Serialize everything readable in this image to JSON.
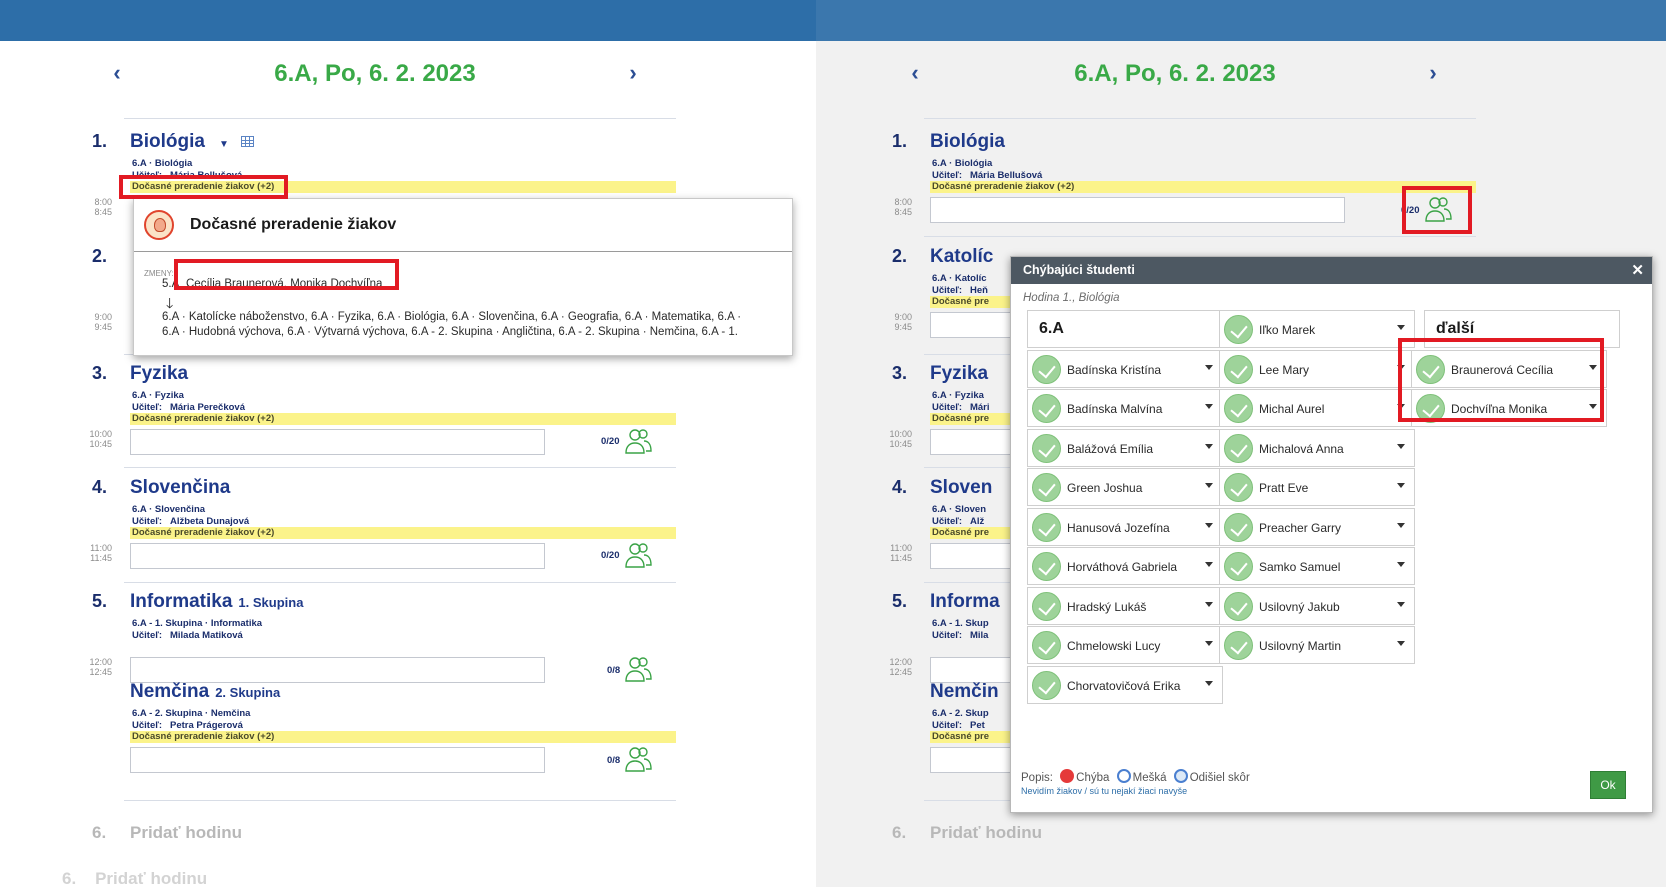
{
  "left_panel": {
    "header": {
      "title": "6.A, Po, 6. 2. 2023",
      "prev": "‹",
      "next": "›"
    },
    "lessons": [
      {
        "num": "1.",
        "name": "Biológia",
        "group": "",
        "class_subject": "6.A · Biológia",
        "teacher_label": "Učiteľ:",
        "teacher": "Mária Bellušová",
        "change": "Dočasné preradenie žiakov (+2)",
        "start": "8:00",
        "end": "8:45",
        "count": "0/20"
      },
      {
        "num": "2.",
        "name": "",
        "group": "",
        "class_subject": "",
        "teacher_label": "",
        "teacher": "",
        "change": "",
        "start": "9:00",
        "end": "9:45",
        "count": ""
      },
      {
        "num": "3.",
        "name": "Fyzika",
        "group": "",
        "class_subject": "6.A · Fyzika",
        "teacher_label": "Učiteľ:",
        "teacher": "Mária Perečková",
        "change": "Dočasné preradenie žiakov (+2)",
        "start": "10:00",
        "end": "10:45",
        "count": "0/20"
      },
      {
        "num": "4.",
        "name": "Slovenčina",
        "group": "",
        "class_subject": "6.A · Slovenčina",
        "teacher_label": "Učiteľ:",
        "teacher": "Alžbeta Dunajová",
        "change": "Dočasné preradenie žiakov (+2)",
        "start": "11:00",
        "end": "11:45",
        "count": "0/20"
      },
      {
        "num": "5.",
        "name": "Informatika",
        "group": "1. Skupina",
        "class_subject": "6.A - 1. Skupina · Informatika",
        "teacher_label": "Učiteľ:",
        "teacher": "Milada Matiková",
        "change": "",
        "start": "12:00",
        "end": "12:45",
        "count": "0/8"
      },
      {
        "num": "",
        "name": "Nemčina",
        "group": "2. Skupina",
        "class_subject": "6.A - 2. Skupina · Nemčina",
        "teacher_label": "Učiteľ:",
        "teacher": "Petra Prágerová",
        "change": "Dočasné preradenie žiakov (+2)",
        "start": "",
        "end": "",
        "count": "0/8"
      }
    ],
    "add_lesson": {
      "num": "6.",
      "label": "Pridať hodinu"
    },
    "faint_add": {
      "num": "6.",
      "label": "Pridať hodinu"
    },
    "popup": {
      "title": "Dočasné preradenie žiakov",
      "changes_label": "ZMENY:",
      "from_class": "5.A",
      "students": "Cecília Braunerová, Monika Dochvíľna",
      "arrow": "🡓",
      "targets_line1": "6.A · Katolícke náboženstvo, 6.A · Fyzika, 6.A · Biológia, 6.A · Slovenčina, 6.A · Geografia, 6.A · Matematika, 6.A ·",
      "targets_line2": "6.A · Hudobná výchova, 6.A · Výtvarná výchova, 6.A - 2. Skupina · Angličtina, 6.A - 2. Skupina · Nemčina, 6.A - 1."
    }
  },
  "right_panel": {
    "header": {
      "title": "6.A, Po, 6. 2. 2023",
      "prev": "‹",
      "next": "›"
    },
    "lessons": [
      {
        "num": "1.",
        "name": "Biológia",
        "class_subject": "6.A · Biológia",
        "teacher_label": "Učiteľ:",
        "teacher": "Mária Bellušová",
        "change": "Dočasné preradenie žiakov (+2)",
        "start": "8:00",
        "end": "8:45",
        "count": "0/20"
      },
      {
        "num": "2.",
        "name": "Katolíc",
        "class_subject": "6.A · Katolíc",
        "teacher_label": "Učiteľ:",
        "teacher": "Heň",
        "change": "Dočasné pre",
        "start": "9:00",
        "end": "9:45"
      },
      {
        "num": "3.",
        "name": "Fyzika",
        "class_subject": "6.A · Fyzika",
        "teacher_label": "Učiteľ:",
        "teacher": "Mári",
        "change": "Dočasné pre",
        "start": "10:00",
        "end": "10:45"
      },
      {
        "num": "4.",
        "name": "Sloven",
        "class_subject": "6.A · Sloven",
        "teacher_label": "Učiteľ:",
        "teacher": "Alž",
        "change": "Dočasné pre",
        "start": "11:00",
        "end": "11:45"
      },
      {
        "num": "5.",
        "name": "Informa",
        "class_subject": "6.A - 1. Skup",
        "teacher_label": "Učiteľ:",
        "teacher": "Mila",
        "change": "",
        "start": "12:00",
        "end": "12:45"
      },
      {
        "num": "",
        "name": "Nemčin",
        "class_subject": "6.A - 2. Skup",
        "teacher_label": "Učiteľ:",
        "teacher": "Pet",
        "change": "Dočasné pre",
        "start": "",
        "end": ""
      }
    ],
    "add_lesson": {
      "num": "6.",
      "label": "Pridať hodinu"
    },
    "modal": {
      "title": "Chýbajúci študenti",
      "close": "✕",
      "subtitle": "Hodina 1., Biológia",
      "col1_head": "6.A",
      "col3_head": "ďalší",
      "col1": [
        "Badínska Kristína",
        "Badínska Malvína",
        "Balážová Emília",
        "Green Joshua",
        "Hanusová Jozefína",
        "Horváthová Gabriela",
        "Hradský Lukáš",
        "Chmelowski Lucy",
        "Chorvatovičová Erika"
      ],
      "col2": [
        "Iľko Marek",
        "Lee Mary",
        "Michal Aurel",
        "Michalová Anna",
        "Pratt Eve",
        "Preacher Garry",
        "Samko Samuel",
        "Usilovný Jakub",
        "Usilovný Martin"
      ],
      "col3": [
        "Braunerová Cecília",
        "Dochvíľna Monika"
      ],
      "legend": {
        "label": "Popis:",
        "absent": "Chýba",
        "late": "Mešká",
        "left": "Odišiel skôr"
      },
      "legend_link": "Nevidím žiakov / sú tu nejakí žiaci navyše",
      "ok": "Ok"
    }
  }
}
